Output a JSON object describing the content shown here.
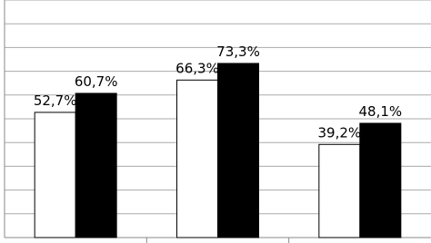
{
  "chart_data": {
    "type": "bar",
    "categories": [
      null,
      null,
      null
    ],
    "series": [
      {
        "color": "#ffffff",
        "values": [
          52.7,
          66.3,
          39.2
        ],
        "value_labels": [
          "52,7%",
          "66,3%",
          "39,2%"
        ]
      },
      {
        "color": "#000000",
        "values": [
          60.7,
          73.3,
          48.1
        ],
        "value_labels": [
          "60,7%",
          "73,3%",
          "48,1%"
        ]
      }
    ],
    "ylim": [
      0,
      100
    ],
    "yticks": [
      0,
      10,
      20,
      30,
      40,
      50,
      60,
      70,
      80,
      90,
      100
    ],
    "grid": true
  }
}
